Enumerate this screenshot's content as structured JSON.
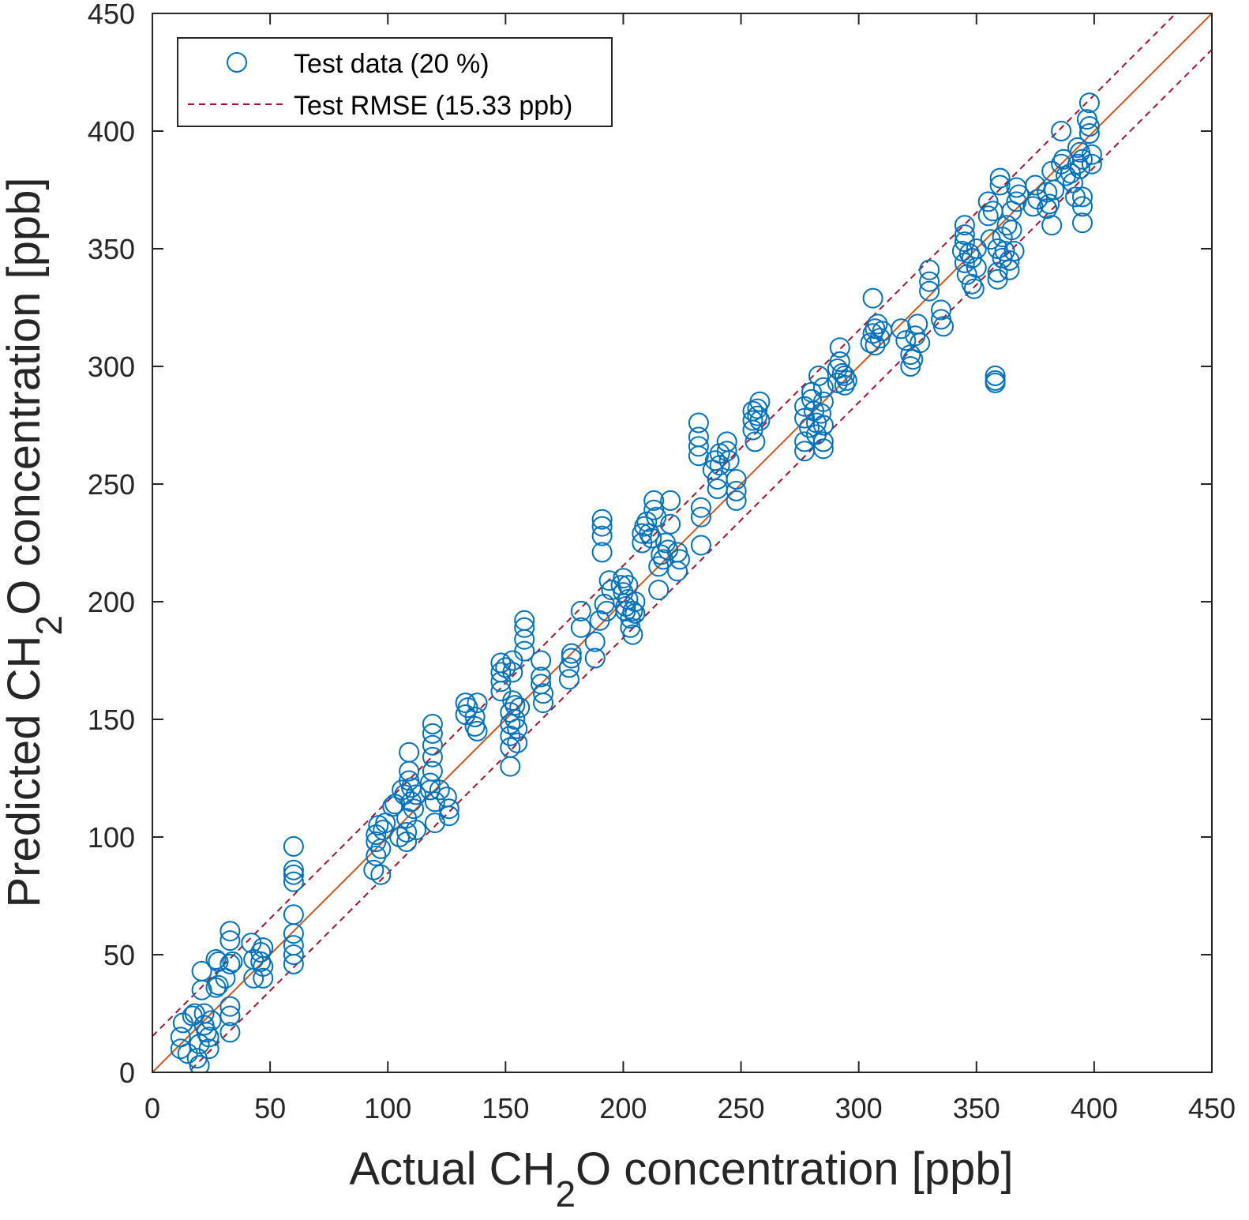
{
  "chart_data": {
    "type": "scatter",
    "title": "",
    "xlabel": "Actual CH2O concentration [ppb]",
    "xlabel_parts": {
      "prefix": "Actual CH",
      "subscript": "2",
      "suffix": "O concentration [ppb]"
    },
    "ylabel": "Predicted CH2O concentration [ppb]",
    "ylabel_parts": {
      "prefix": "Predicted CH",
      "subscript": "2",
      "suffix": "O concentration [ppb]"
    },
    "xlim": [
      0,
      450
    ],
    "ylim": [
      0,
      450
    ],
    "xticks": [
      0,
      50,
      100,
      150,
      200,
      250,
      300,
      350,
      400,
      450
    ],
    "yticks": [
      0,
      50,
      100,
      150,
      200,
      250,
      300,
      350,
      400,
      450
    ],
    "grid": false,
    "legend": {
      "placement": "top-left",
      "entries": [
        {
          "label": "Test data (20 %)",
          "marker": "circle",
          "color": "#0072BD"
        },
        {
          "label": "Test RMSE (15.33 ppb)",
          "style": "dashed",
          "color": "#A2142F"
        }
      ]
    },
    "rmse": 15.33,
    "identity_line": {
      "from": [
        0,
        0
      ],
      "to": [
        450,
        450
      ],
      "color": "#D95319"
    },
    "colors": {
      "points": "#0072BD",
      "identity": "#D95319",
      "rmse": "#A2142F",
      "axis": "#262626"
    },
    "series": [
      {
        "name": "Test data (20 %)",
        "points": [
          [
            12,
            10
          ],
          [
            12,
            15
          ],
          [
            13,
            21
          ],
          [
            15,
            8
          ],
          [
            17,
            24
          ],
          [
            18,
            25
          ],
          [
            19,
            6
          ],
          [
            20,
            3
          ],
          [
            20,
            12
          ],
          [
            21,
            43
          ],
          [
            21,
            35
          ],
          [
            22,
            25
          ],
          [
            22,
            20
          ],
          [
            23,
            17
          ],
          [
            24,
            10
          ],
          [
            24,
            15
          ],
          [
            25,
            22
          ],
          [
            27,
            48
          ],
          [
            27,
            36
          ],
          [
            28,
            47
          ],
          [
            28,
            37
          ],
          [
            31,
            40
          ],
          [
            33,
            60
          ],
          [
            33,
            56
          ],
          [
            33,
            46
          ],
          [
            33,
            28
          ],
          [
            33,
            24
          ],
          [
            33,
            17
          ],
          [
            34,
            47
          ],
          [
            42,
            55
          ],
          [
            43,
            48
          ],
          [
            43,
            40
          ],
          [
            46,
            51
          ],
          [
            46,
            47
          ],
          [
            47,
            53
          ],
          [
            47,
            45
          ],
          [
            47,
            40
          ],
          [
            60,
            96
          ],
          [
            60,
            86
          ],
          [
            60,
            84
          ],
          [
            60,
            81
          ],
          [
            60,
            67
          ],
          [
            60,
            59
          ],
          [
            60,
            54
          ],
          [
            60,
            50
          ],
          [
            60,
            46
          ],
          [
            94,
            86
          ],
          [
            95,
            92
          ],
          [
            95,
            98
          ],
          [
            95,
            101
          ],
          [
            96,
            105
          ],
          [
            97,
            84
          ],
          [
            97,
            95
          ],
          [
            98,
            103
          ],
          [
            99,
            106
          ],
          [
            102,
            113
          ],
          [
            103,
            114
          ],
          [
            105,
            100
          ],
          [
            106,
            120
          ],
          [
            107,
            118
          ],
          [
            108,
            98
          ],
          [
            108,
            102
          ],
          [
            108,
            108
          ],
          [
            109,
            136
          ],
          [
            109,
            128
          ],
          [
            109,
            124
          ],
          [
            110,
            121
          ],
          [
            110,
            115
          ],
          [
            111,
            112
          ],
          [
            112,
            103
          ],
          [
            112,
            118
          ],
          [
            118,
            120
          ],
          [
            118,
            123
          ],
          [
            119,
            144
          ],
          [
            119,
            139
          ],
          [
            119,
            134
          ],
          [
            119,
            128
          ],
          [
            119,
            148
          ],
          [
            120,
            115
          ],
          [
            120,
            106
          ],
          [
            122,
            120
          ],
          [
            125,
            117
          ],
          [
            126,
            112
          ],
          [
            126,
            109
          ],
          [
            133,
            157
          ],
          [
            133,
            152
          ],
          [
            134,
            155
          ],
          [
            137,
            147
          ],
          [
            137,
            151
          ],
          [
            138,
            145
          ],
          [
            138,
            157
          ],
          [
            148,
            174
          ],
          [
            148,
            170
          ],
          [
            148,
            166
          ],
          [
            148,
            162
          ],
          [
            150,
            172
          ],
          [
            152,
            153
          ],
          [
            152,
            148
          ],
          [
            152,
            143
          ],
          [
            152,
            138
          ],
          [
            152,
            130
          ],
          [
            153,
            175
          ],
          [
            153,
            170
          ],
          [
            153,
            158
          ],
          [
            154,
            156
          ],
          [
            154,
            150
          ],
          [
            155,
            140
          ],
          [
            155,
            146
          ],
          [
            156,
            155
          ],
          [
            158,
            192
          ],
          [
            158,
            189
          ],
          [
            158,
            184
          ],
          [
            158,
            179
          ],
          [
            165,
            175
          ],
          [
            165,
            168
          ],
          [
            165,
            165
          ],
          [
            166,
            161
          ],
          [
            166,
            157
          ],
          [
            177,
            167
          ],
          [
            177,
            172
          ],
          [
            178,
            176
          ],
          [
            178,
            178
          ],
          [
            182,
            196
          ],
          [
            182,
            189
          ],
          [
            188,
            176
          ],
          [
            188,
            183
          ],
          [
            190,
            192
          ],
          [
            191,
            235
          ],
          [
            191,
            232
          ],
          [
            191,
            228
          ],
          [
            191,
            221
          ],
          [
            192,
            199
          ],
          [
            193,
            196
          ],
          [
            194,
            209
          ],
          [
            195,
            205
          ],
          [
            199,
            207
          ],
          [
            200,
            210
          ],
          [
            200,
            204
          ],
          [
            201,
            198
          ],
          [
            201,
            196
          ],
          [
            202,
            207
          ],
          [
            202,
            201
          ],
          [
            203,
            189
          ],
          [
            203,
            193
          ],
          [
            204,
            196
          ],
          [
            204,
            186
          ],
          [
            205,
            200
          ],
          [
            205,
            195
          ],
          [
            208,
            225
          ],
          [
            208,
            229
          ],
          [
            209,
            232
          ],
          [
            210,
            234
          ],
          [
            211,
            229
          ],
          [
            212,
            227
          ],
          [
            213,
            243
          ],
          [
            213,
            239
          ],
          [
            214,
            236
          ],
          [
            215,
            205
          ],
          [
            215,
            215
          ],
          [
            216,
            220
          ],
          [
            217,
            218
          ],
          [
            218,
            225
          ],
          [
            219,
            222
          ],
          [
            220,
            243
          ],
          [
            220,
            233
          ],
          [
            223,
            221
          ],
          [
            223,
            213
          ],
          [
            224,
            218
          ],
          [
            232,
            276
          ],
          [
            232,
            270
          ],
          [
            232,
            266
          ],
          [
            232,
            262
          ],
          [
            233,
            240
          ],
          [
            233,
            236
          ],
          [
            233,
            224
          ],
          [
            238,
            256
          ],
          [
            239,
            260
          ],
          [
            240,
            252
          ],
          [
            240,
            248
          ],
          [
            241,
            263
          ],
          [
            241,
            258
          ],
          [
            244,
            268
          ],
          [
            244,
            264
          ],
          [
            245,
            260
          ],
          [
            248,
            252
          ],
          [
            248,
            247
          ],
          [
            248,
            243
          ],
          [
            255,
            281
          ],
          [
            255,
            277
          ],
          [
            255,
            273
          ],
          [
            256,
            268
          ],
          [
            257,
            282
          ],
          [
            257,
            279
          ],
          [
            258,
            285
          ],
          [
            258,
            277
          ],
          [
            277,
            283
          ],
          [
            277,
            278
          ],
          [
            277,
            268
          ],
          [
            277,
            264
          ],
          [
            279,
            274
          ],
          [
            280,
            289
          ],
          [
            280,
            286
          ],
          [
            281,
            281
          ],
          [
            282,
            276
          ],
          [
            282,
            271
          ],
          [
            283,
            296
          ],
          [
            284,
            280
          ],
          [
            285,
            291
          ],
          [
            285,
            285
          ],
          [
            285,
            275
          ],
          [
            285,
            268
          ],
          [
            285,
            265
          ],
          [
            291,
            293
          ],
          [
            291,
            299
          ],
          [
            292,
            308
          ],
          [
            292,
            302
          ],
          [
            293,
            297
          ],
          [
            294,
            292
          ],
          [
            294,
            296
          ],
          [
            295,
            294
          ],
          [
            305,
            310
          ],
          [
            306,
            329
          ],
          [
            306,
            314
          ],
          [
            307,
            316
          ],
          [
            307,
            309
          ],
          [
            308,
            318
          ],
          [
            309,
            312
          ],
          [
            310,
            315
          ],
          [
            318,
            316
          ],
          [
            320,
            311
          ],
          [
            322,
            305
          ],
          [
            322,
            300
          ],
          [
            323,
            303
          ],
          [
            324,
            313
          ],
          [
            325,
            318
          ],
          [
            326,
            310
          ],
          [
            330,
            336
          ],
          [
            330,
            332
          ],
          [
            330,
            341
          ],
          [
            335,
            324
          ],
          [
            335,
            320
          ],
          [
            336,
            317
          ],
          [
            344,
            349
          ],
          [
            345,
            360
          ],
          [
            345,
            356
          ],
          [
            345,
            353
          ],
          [
            345,
            344
          ],
          [
            346,
            339
          ],
          [
            347,
            348
          ],
          [
            348,
            335
          ],
          [
            348,
            346
          ],
          [
            349,
            333
          ],
          [
            350,
            342
          ],
          [
            350,
            350
          ],
          [
            355,
            370
          ],
          [
            355,
            364
          ],
          [
            356,
            354
          ],
          [
            357,
            366
          ],
          [
            358,
            296
          ],
          [
            358,
            294
          ],
          [
            358,
            293
          ],
          [
            359,
            350
          ],
          [
            359,
            340
          ],
          [
            359,
            337
          ],
          [
            360,
            380
          ],
          [
            360,
            377
          ],
          [
            361,
            346
          ],
          [
            361,
            355
          ],
          [
            362,
            349
          ],
          [
            363,
            360
          ],
          [
            364,
            345
          ],
          [
            364,
            341
          ],
          [
            365,
            366
          ],
          [
            365,
            358
          ],
          [
            366,
            349
          ],
          [
            367,
            376
          ],
          [
            367,
            370
          ],
          [
            368,
            373
          ],
          [
            374,
            368
          ],
          [
            375,
            377
          ],
          [
            376,
            371
          ],
          [
            380,
            367
          ],
          [
            380,
            374
          ],
          [
            381,
            369
          ],
          [
            382,
            383
          ],
          [
            382,
            360
          ],
          [
            383,
            375
          ],
          [
            386,
            400
          ],
          [
            386,
            386
          ],
          [
            387,
            388
          ],
          [
            388,
            381
          ],
          [
            390,
            382
          ],
          [
            391,
            378
          ],
          [
            392,
            372
          ],
          [
            393,
            393
          ],
          [
            393,
            386
          ],
          [
            394,
            384
          ],
          [
            394,
            391
          ],
          [
            395,
            388
          ],
          [
            395,
            372
          ],
          [
            395,
            368
          ],
          [
            395,
            361
          ],
          [
            397,
            405
          ],
          [
            398,
            412
          ],
          [
            398,
            402
          ],
          [
            398,
            399
          ],
          [
            399,
            390
          ],
          [
            399,
            386
          ]
        ]
      }
    ]
  },
  "labels": {
    "legend_test_data": "Test data (20 %)",
    "legend_rmse": "Test RMSE (15.33 ppb)",
    "x_prefix": "Actual CH",
    "x_sub": "2",
    "x_suffix": "O concentration [ppb]",
    "y_prefix": "Predicted CH",
    "y_sub": "2",
    "y_suffix": "O concentration [ppb]"
  }
}
